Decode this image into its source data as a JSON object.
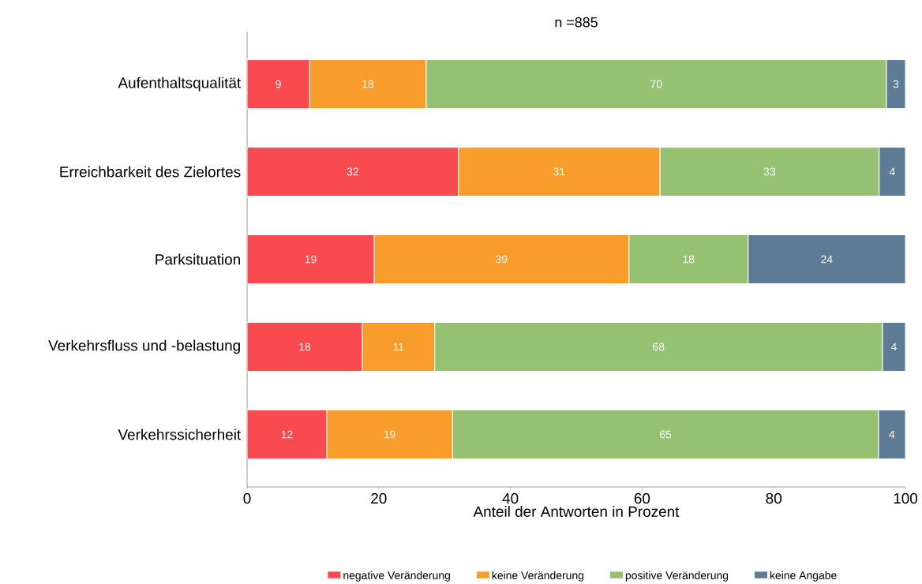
{
  "chart_data": {
    "type": "bar",
    "orientation": "horizontal",
    "stacked": true,
    "title": "n =885",
    "xlabel": "Anteil der Antworten in Prozent",
    "categories": [
      "Aufenthaltsqualität",
      "Erreichbarkeit des Zielortes",
      "Parksituation",
      "Verkehrsfluss und -belastung",
      "Verkehrssicherheit"
    ],
    "series": [
      {
        "name": "negative Veränderung",
        "color": "#f94b4f",
        "values": [
          9.5,
          32.1,
          19.3,
          17.5,
          12.1
        ],
        "value_labels": [
          "9",
          "32",
          "19",
          "18",
          "12"
        ]
      },
      {
        "name": "keine Veränderung",
        "color": "#f89c2b",
        "values": [
          17.7,
          30.6,
          38.7,
          11.0,
          19.1
        ],
        "value_labels": [
          "18",
          "31",
          "39",
          "11",
          "19"
        ]
      },
      {
        "name": "positive Veränderung",
        "color": "#96c173",
        "values": [
          69.9,
          33.3,
          18.1,
          68.0,
          64.7
        ],
        "value_labels": [
          "70",
          "33",
          "18",
          "68",
          "65"
        ]
      },
      {
        "name": "keine Angabe",
        "color": "#5e7b96",
        "values": [
          2.9,
          4.0,
          23.9,
          3.5,
          4.1
        ],
        "value_labels": [
          "3",
          "4",
          "24",
          "4",
          "4"
        ]
      }
    ],
    "xlim": [
      0,
      100
    ],
    "xticks": [
      0,
      20,
      40,
      60,
      80,
      100
    ],
    "legend": "bottom"
  }
}
